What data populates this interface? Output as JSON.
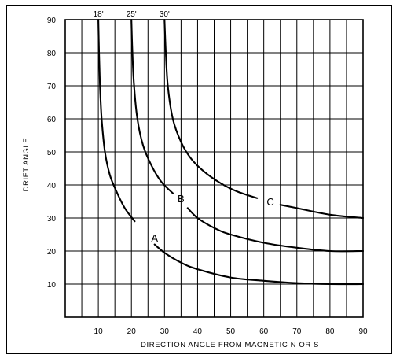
{
  "chart_data": {
    "type": "line",
    "title": "",
    "xlabel": "DIRECTION ANGLE FROM MAGNETIC N OR S",
    "ylabel": "DRIFT ANGLE",
    "xlim": [
      0,
      90
    ],
    "ylim": [
      0,
      90
    ],
    "xticks": [
      10,
      20,
      30,
      40,
      50,
      60,
      70,
      80,
      90
    ],
    "yticks": [
      10,
      20,
      30,
      40,
      50,
      60,
      70,
      80,
      90
    ],
    "grid": true,
    "top_labels": [
      {
        "x": 10,
        "text": "18'"
      },
      {
        "x": 20,
        "text": "25'"
      },
      {
        "x": 30,
        "text": "30'"
      }
    ],
    "series": [
      {
        "name": "A",
        "label_at": [
          27,
          24
        ],
        "segments": [
          [
            [
              10,
              90
            ],
            [
              10.2,
              80
            ],
            [
              10.5,
              70
            ],
            [
              11,
              60
            ],
            [
              12,
              50
            ],
            [
              13.5,
              43
            ],
            [
              15.5,
              38
            ],
            [
              18,
              33
            ],
            [
              21,
              29
            ]
          ],
          [
            [
              27,
              22
            ],
            [
              30,
              19.5
            ],
            [
              35,
              16.5
            ],
            [
              40,
              14.5
            ],
            [
              50,
              12
            ],
            [
              60,
              11
            ],
            [
              70,
              10.3
            ],
            [
              80,
              10
            ],
            [
              90,
              10
            ]
          ]
        ]
      },
      {
        "name": "B",
        "label_at": [
          35,
          36
        ],
        "segments": [
          [
            [
              20,
              90
            ],
            [
              20.3,
              80
            ],
            [
              20.8,
              70
            ],
            [
              21.8,
              60
            ],
            [
              23.5,
              52
            ],
            [
              26,
              46
            ],
            [
              29,
              41
            ],
            [
              32.5,
              37.5
            ]
          ],
          [
            [
              37,
              33
            ],
            [
              40,
              30
            ],
            [
              45,
              27
            ],
            [
              50,
              25
            ],
            [
              60,
              22.5
            ],
            [
              70,
              21
            ],
            [
              80,
              20
            ],
            [
              90,
              20
            ]
          ]
        ]
      },
      {
        "name": "C",
        "label_at": [
          62,
          35
        ],
        "segments": [
          [
            [
              30,
              90
            ],
            [
              30.4,
              80
            ],
            [
              31,
              70
            ],
            [
              32.5,
              60
            ],
            [
              35,
              53
            ],
            [
              38,
              48
            ],
            [
              42,
              44
            ],
            [
              47,
              40.5
            ],
            [
              52,
              38
            ],
            [
              58,
              36
            ]
          ],
          [
            [
              65,
              34
            ],
            [
              70,
              33
            ],
            [
              80,
              31
            ],
            [
              90,
              30
            ]
          ]
        ]
      }
    ]
  }
}
